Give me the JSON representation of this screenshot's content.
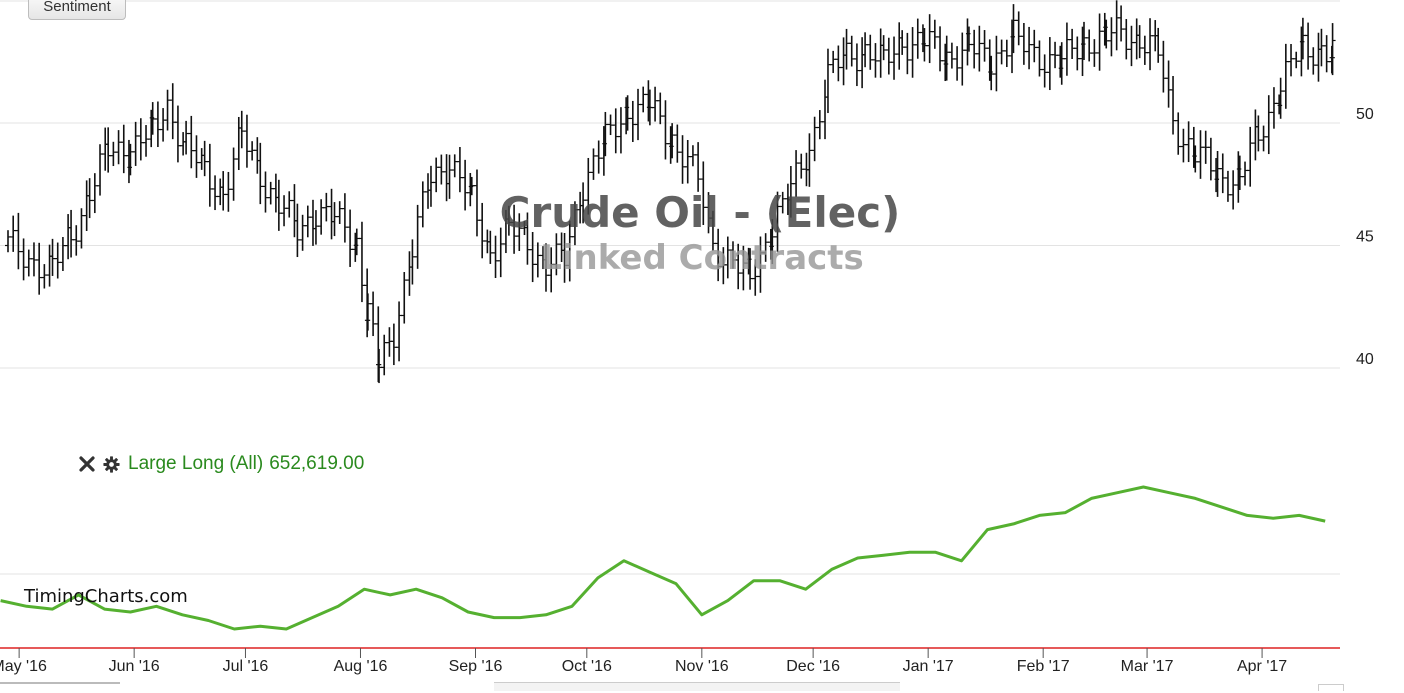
{
  "toolbar": {
    "sentiment_label": "Sentiment"
  },
  "watermark": {
    "title": "Crude Oil - (Elec)",
    "subtitle": "Linked Contracts"
  },
  "site": "TimingCharts.com",
  "icons": {
    "close": "close-icon",
    "settings": "gear-icon"
  },
  "colors": {
    "price_bars": "#111111",
    "indicator_line": "#55b030",
    "indicator_text": "#2a8a1e",
    "baseline": "#dd2222",
    "grid": "#e3e3e3"
  },
  "chart_data": [
    {
      "type": "ohlc-bar",
      "series_name": "Crude Oil - (Elec)",
      "y_ticks": [
        40,
        45,
        50
      ],
      "ylim": [
        37.5,
        55
      ],
      "x_months": [
        "May '16",
        "Jun '16",
        "Jul '16",
        "Aug '16",
        "Sep '16",
        "Oct '16",
        "Nov '16",
        "Dec '16",
        "Jan '17",
        "Feb '17",
        "Mar '17",
        "Apr '17"
      ],
      "x_range": [
        "2016-04-28",
        "2017-04-22"
      ],
      "grid": true,
      "closes": [
        [
          "2016-04-28",
          45.0
        ],
        [
          "2016-05-05",
          44.4
        ],
        [
          "2016-05-10",
          44.0
        ],
        [
          "2016-05-15",
          45.4
        ],
        [
          "2016-05-20",
          47.2
        ],
        [
          "2016-05-25",
          48.8
        ],
        [
          "2016-05-31",
          49.0
        ],
        [
          "2016-06-06",
          49.6
        ],
        [
          "2016-06-10",
          50.8
        ],
        [
          "2016-06-15",
          49.0
        ],
        [
          "2016-06-20",
          48.0
        ],
        [
          "2016-06-25",
          47.2
        ],
        [
          "2016-06-30",
          49.4
        ],
        [
          "2016-07-05",
          48.0
        ],
        [
          "2016-07-10",
          46.6
        ],
        [
          "2016-07-15",
          45.6
        ],
        [
          "2016-07-20",
          46.4
        ],
        [
          "2016-07-25",
          46.0
        ],
        [
          "2016-07-31",
          45.2
        ],
        [
          "2016-08-03",
          42.2
        ],
        [
          "2016-08-06",
          40.0
        ],
        [
          "2016-08-10",
          41.6
        ],
        [
          "2016-08-15",
          44.8
        ],
        [
          "2016-08-20",
          47.8
        ],
        [
          "2016-08-25",
          48.4
        ],
        [
          "2016-08-31",
          46.8
        ],
        [
          "2016-09-05",
          44.8
        ],
        [
          "2016-09-10",
          45.6
        ],
        [
          "2016-09-15",
          45.2
        ],
        [
          "2016-09-20",
          44.2
        ],
        [
          "2016-09-25",
          44.4
        ],
        [
          "2016-09-30",
          47.6
        ],
        [
          "2016-10-06",
          49.2
        ],
        [
          "2016-10-12",
          50.6
        ],
        [
          "2016-10-18",
          50.6
        ],
        [
          "2016-10-24",
          49.4
        ],
        [
          "2016-10-31",
          47.6
        ],
        [
          "2016-11-04",
          45.0
        ],
        [
          "2016-11-08",
          44.6
        ],
        [
          "2016-11-14",
          43.6
        ],
        [
          "2016-11-20",
          45.8
        ],
        [
          "2016-11-25",
          47.2
        ],
        [
          "2016-11-30",
          49.0
        ],
        [
          "2016-12-05",
          51.8
        ],
        [
          "2016-12-10",
          52.8
        ],
        [
          "2016-12-15",
          53.0
        ],
        [
          "2016-12-20",
          52.4
        ],
        [
          "2016-12-25",
          53.4
        ],
        [
          "2016-12-31",
          53.2
        ],
        [
          "2017-01-06",
          52.8
        ],
        [
          "2017-01-12",
          53.0
        ],
        [
          "2017-01-18",
          52.6
        ],
        [
          "2017-01-24",
          53.4
        ],
        [
          "2017-01-31",
          52.8
        ],
        [
          "2017-02-06",
          52.4
        ],
        [
          "2017-02-12",
          53.4
        ],
        [
          "2017-02-18",
          53.4
        ],
        [
          "2017-02-22",
          53.8
        ],
        [
          "2017-02-27",
          53.4
        ],
        [
          "2017-03-04",
          52.8
        ],
        [
          "2017-03-08",
          50.2
        ],
        [
          "2017-03-14",
          48.6
        ],
        [
          "2017-03-20",
          48.0
        ],
        [
          "2017-03-26",
          47.6
        ],
        [
          "2017-03-31",
          49.6
        ],
        [
          "2017-04-06",
          51.4
        ],
        [
          "2017-04-12",
          53.2
        ],
        [
          "2017-04-17",
          53.0
        ],
        [
          "2017-04-20",
          52.6
        ]
      ]
    },
    {
      "type": "line",
      "series_name": "Large Long (All)",
      "last_value_label": "652,619.00",
      "points": [
        [
          "2016-04-26",
          0.62
        ],
        [
          "2016-05-03",
          0.6
        ],
        [
          "2016-05-10",
          0.59
        ],
        [
          "2016-05-17",
          0.64
        ],
        [
          "2016-05-24",
          0.59
        ],
        [
          "2016-05-31",
          0.58
        ],
        [
          "2016-06-07",
          0.6
        ],
        [
          "2016-06-14",
          0.57
        ],
        [
          "2016-06-21",
          0.55
        ],
        [
          "2016-06-28",
          0.52
        ],
        [
          "2016-07-05",
          0.53
        ],
        [
          "2016-07-12",
          0.52
        ],
        [
          "2016-07-19",
          0.56
        ],
        [
          "2016-07-26",
          0.6
        ],
        [
          "2016-08-02",
          0.66
        ],
        [
          "2016-08-09",
          0.64
        ],
        [
          "2016-08-16",
          0.66
        ],
        [
          "2016-08-23",
          0.63
        ],
        [
          "2016-08-30",
          0.58
        ],
        [
          "2016-09-06",
          0.56
        ],
        [
          "2016-09-13",
          0.56
        ],
        [
          "2016-09-20",
          0.57
        ],
        [
          "2016-09-27",
          0.6
        ],
        [
          "2016-10-04",
          0.7
        ],
        [
          "2016-10-11",
          0.76
        ],
        [
          "2016-10-18",
          0.72
        ],
        [
          "2016-10-25",
          0.68
        ],
        [
          "2016-11-01",
          0.57
        ],
        [
          "2016-11-08",
          0.62
        ],
        [
          "2016-11-15",
          0.69
        ],
        [
          "2016-11-22",
          0.69
        ],
        [
          "2016-11-29",
          0.66
        ],
        [
          "2016-12-06",
          0.73
        ],
        [
          "2016-12-13",
          0.77
        ],
        [
          "2016-12-20",
          0.78
        ],
        [
          "2016-12-27",
          0.79
        ],
        [
          "2017-01-03",
          0.79
        ],
        [
          "2017-01-10",
          0.76
        ],
        [
          "2017-01-17",
          0.87
        ],
        [
          "2017-01-24",
          0.89
        ],
        [
          "2017-01-31",
          0.92
        ],
        [
          "2017-02-07",
          0.93
        ],
        [
          "2017-02-14",
          0.98
        ],
        [
          "2017-02-21",
          1.0
        ],
        [
          "2017-02-28",
          1.02
        ],
        [
          "2017-03-07",
          1.0
        ],
        [
          "2017-03-14",
          0.98
        ],
        [
          "2017-03-21",
          0.95
        ],
        [
          "2017-03-28",
          0.92
        ],
        [
          "2017-04-04",
          0.91
        ],
        [
          "2017-04-11",
          0.92
        ],
        [
          "2017-04-18",
          0.9
        ]
      ]
    }
  ]
}
